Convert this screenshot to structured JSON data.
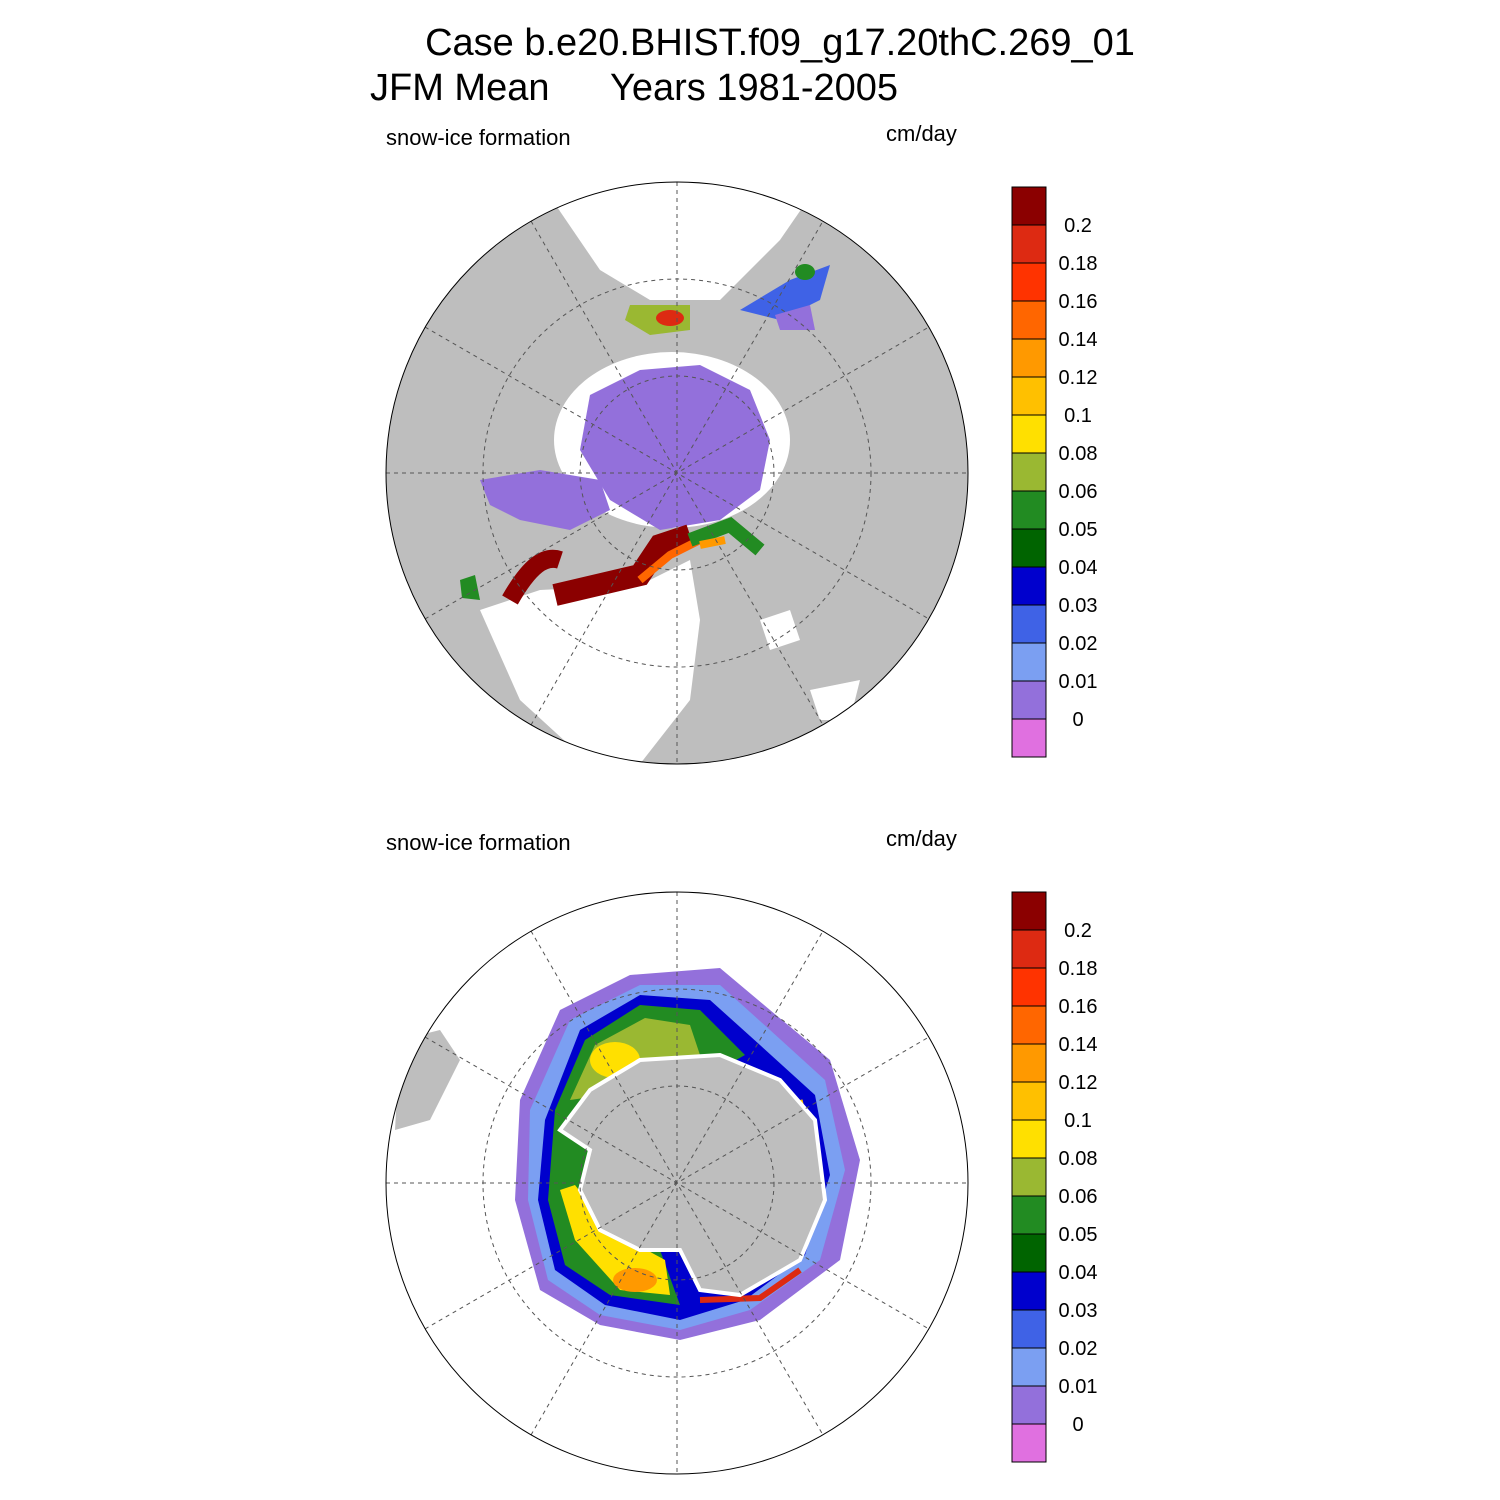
{
  "header": {
    "title": "Case b.e20.BHIST.f09_g17.20thC.269_01",
    "period": "JFM Mean",
    "years": "Years 1981-2005"
  },
  "colorbar": {
    "labels": [
      0.2,
      0.18,
      0.16,
      0.14,
      0.12,
      0.1,
      0.08,
      0.06,
      0.05,
      0.04,
      0.03,
      0.02,
      0.01,
      0
    ],
    "colors": [
      "#8b0000",
      "#dd2a12",
      "#ff3300",
      "#ff6600",
      "#ff9900",
      "#ffc000",
      "#ffe000",
      "#9ab832",
      "#228b22",
      "#006400",
      "#0000cd",
      "#3f62e6",
      "#7b9ff2",
      "#9370db",
      "#e070e0"
    ]
  },
  "panels": [
    {
      "variable": "snow-ice formation",
      "units": "cm/day"
    },
    {
      "variable": "snow-ice formation",
      "units": "cm/day"
    }
  ]
}
